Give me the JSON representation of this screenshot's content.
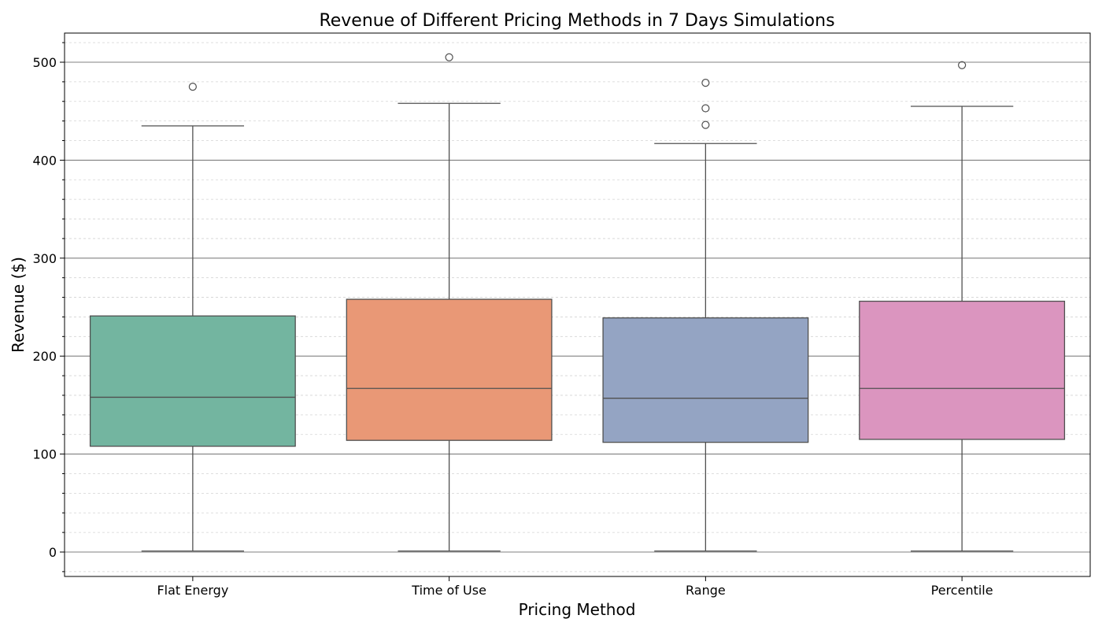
{
  "chart_data": {
    "type": "box",
    "title": "Revenue of Different Pricing Methods in 7 Days Simulations",
    "xlabel": "Pricing Method",
    "ylabel": "Revenue ($)",
    "ylim": [
      -25,
      530
    ],
    "yticks": [
      0,
      100,
      200,
      300,
      400,
      500
    ],
    "y_minor_step": 20,
    "grid": {
      "major": true,
      "minor": true
    },
    "categories": [
      "Flat Energy",
      "Time of Use",
      "Range",
      "Percentile"
    ],
    "series": [
      {
        "category": "Flat Energy",
        "color": "#73b5a0",
        "min": 1,
        "q1": 108,
        "median": 158,
        "q3": 241,
        "max": 435,
        "outliers": [
          475
        ]
      },
      {
        "category": "Time of Use",
        "color": "#e99876",
        "min": 1,
        "q1": 114,
        "median": 167,
        "q3": 258,
        "max": 458,
        "outliers": [
          505
        ]
      },
      {
        "category": "Range",
        "color": "#94a4c3",
        "min": 1,
        "q1": 112,
        "median": 157,
        "q3": 239,
        "max": 417,
        "outliers": [
          436,
          453,
          479
        ]
      },
      {
        "category": "Percentile",
        "color": "#db95bf",
        "min": 1,
        "q1": 115,
        "median": 167,
        "q3": 256,
        "max": 455,
        "outliers": [
          497
        ]
      }
    ]
  }
}
